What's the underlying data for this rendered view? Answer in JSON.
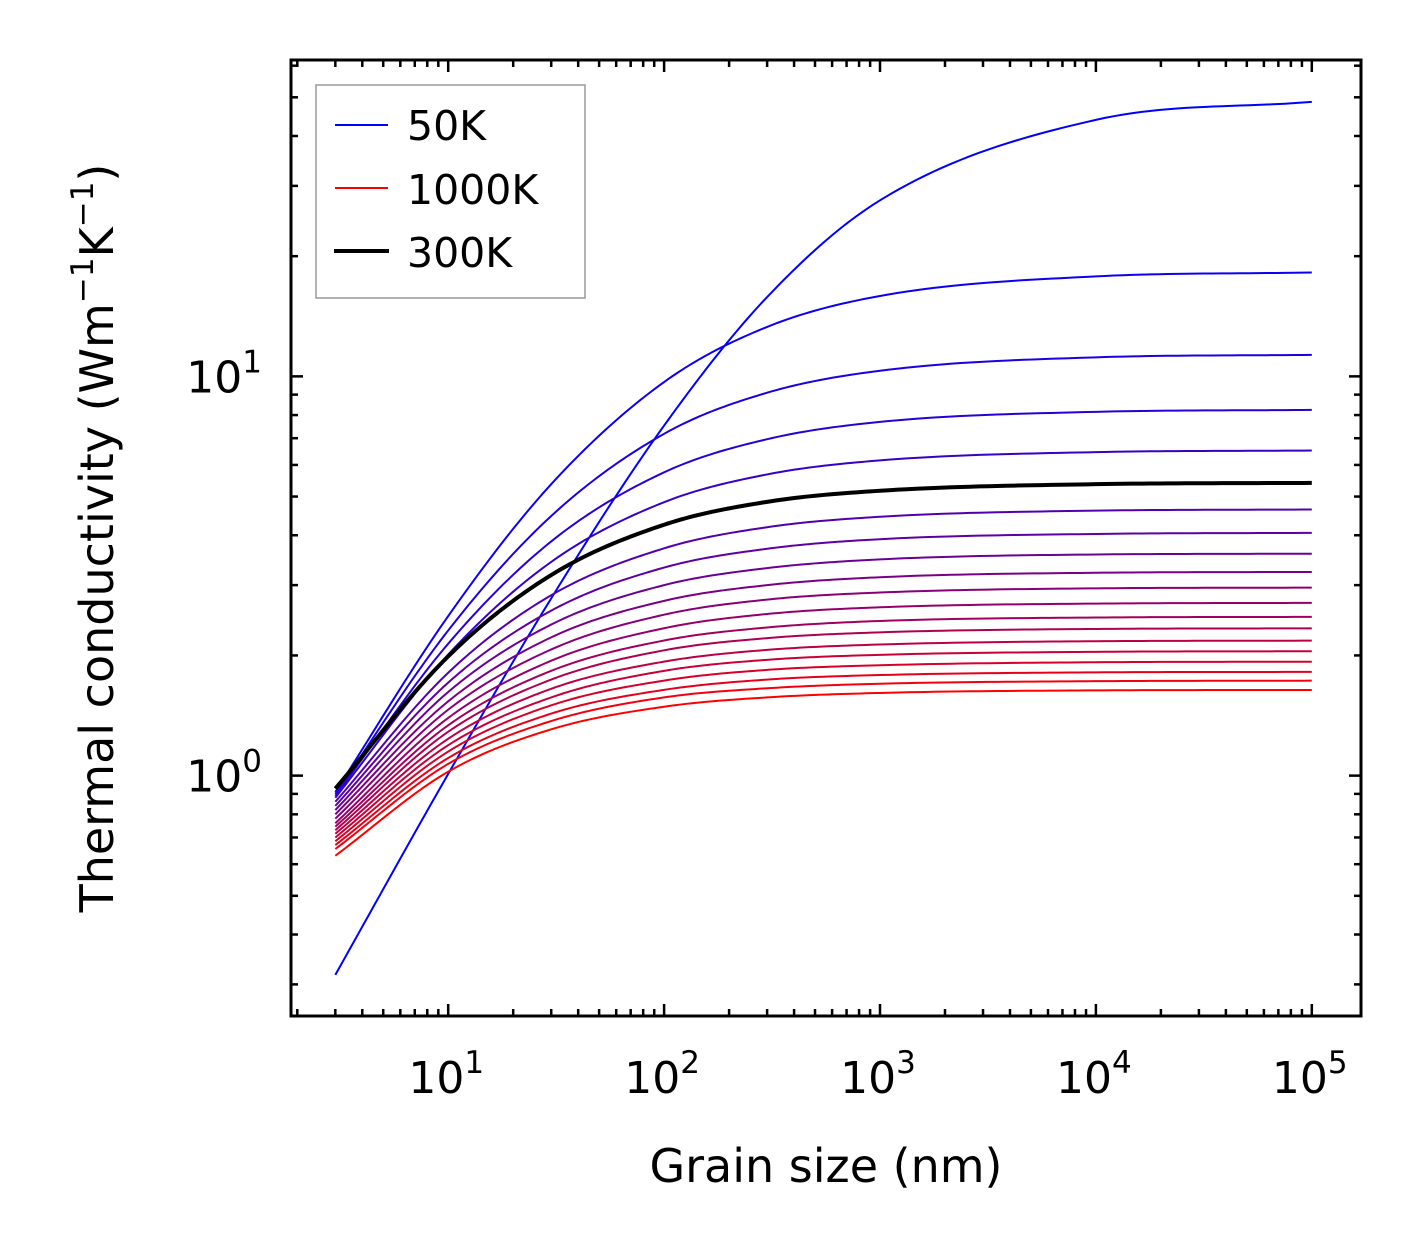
{
  "chart_data": {
    "type": "line",
    "title": "",
    "xlabel": "Grain size (nm)",
    "ylabel_parts": {
      "main": "Thermal conductivity (Wm",
      "sup1": "−1",
      "mid": "K",
      "sup2": "−1",
      "end": ")"
    },
    "ylabel": "Thermal conductivity (Wm⁻¹K⁻¹)",
    "xscale": "log",
    "yscale": "log",
    "xlim": [
      1.87,
      169000
    ],
    "ylim": [
      0.25,
      62
    ],
    "grid": false,
    "legend_position": "top-left",
    "x_major_ticks": [
      {
        "value": 10,
        "base": "10",
        "exp": "1"
      },
      {
        "value": 100,
        "base": "10",
        "exp": "2"
      },
      {
        "value": 1000,
        "base": "10",
        "exp": "3"
      },
      {
        "value": 10000,
        "base": "10",
        "exp": "4"
      },
      {
        "value": 100000,
        "base": "10",
        "exp": "5"
      }
    ],
    "y_major_ticks": [
      {
        "value": 1,
        "base": "10",
        "exp": "0"
      },
      {
        "value": 10,
        "base": "10",
        "exp": "1"
      }
    ],
    "legend": [
      {
        "label": "50K",
        "color": "#0000ff",
        "style": "thin"
      },
      {
        "label": "1000K",
        "color": "#ff0000",
        "style": "thin"
      },
      {
        "label": "300K",
        "color": "#000000",
        "style": "thick"
      }
    ],
    "color_start": "#0000ff",
    "color_end": "#ff0000",
    "highlight_color": "#000000",
    "x": [
      3,
      10,
      30,
      100,
      300,
      1000,
      10000,
      100000
    ],
    "series": [
      {
        "name": "50K",
        "temperature": 50,
        "values": [
          0.317,
          1.01,
          2.78,
          7.53,
          15.8,
          27.6,
          43.9,
          48.7
        ]
      },
      {
        "name": "100K",
        "temperature": 100,
        "values": [
          0.91,
          2.51,
          5.37,
          9.68,
          13.3,
          15.9,
          17.8,
          18.2
        ]
      },
      {
        "name": "150K",
        "temperature": 150,
        "values": [
          0.9,
          2.31,
          4.47,
          7.18,
          9.1,
          10.33,
          11.16,
          11.32
        ]
      },
      {
        "name": "200K",
        "temperature": 200,
        "values": [
          0.89,
          2.14,
          3.86,
          5.75,
          6.96,
          7.69,
          8.15,
          8.24
        ]
      },
      {
        "name": "250K",
        "temperature": 250,
        "values": [
          0.88,
          2.01,
          3.43,
          4.84,
          5.68,
          6.16,
          6.46,
          6.52
        ]
      },
      {
        "name": "300K",
        "temperature": 300,
        "values": [
          0.928,
          1.99,
          3.18,
          4.25,
          4.85,
          5.17,
          5.37,
          5.41
        ],
        "highlight": true
      },
      {
        "name": "350K",
        "temperature": 350,
        "values": [
          0.86,
          1.81,
          2.83,
          3.71,
          4.19,
          4.45,
          4.61,
          4.64
        ]
      },
      {
        "name": "400K",
        "temperature": 400,
        "values": [
          0.84,
          1.71,
          2.59,
          3.32,
          3.7,
          3.91,
          4.03,
          4.055
        ]
      },
      {
        "name": "450K",
        "temperature": 450,
        "values": [
          0.82,
          1.62,
          2.39,
          3.0,
          3.31,
          3.48,
          3.58,
          3.596
        ]
      },
      {
        "name": "500K",
        "temperature": 500,
        "values": [
          0.8,
          1.535,
          2.22,
          2.74,
          3.0,
          3.14,
          3.222,
          3.237
        ]
      },
      {
        "name": "550K",
        "temperature": 550,
        "values": [
          0.78,
          1.463,
          2.07,
          2.53,
          2.76,
          2.875,
          2.945,
          2.957
        ]
      },
      {
        "name": "600K",
        "temperature": 600,
        "values": [
          0.76,
          1.395,
          1.94,
          2.34,
          2.54,
          2.64,
          2.697,
          2.708
        ]
      },
      {
        "name": "650K",
        "temperature": 650,
        "values": [
          0.745,
          1.337,
          1.83,
          2.18,
          2.35,
          2.44,
          2.489,
          2.498
        ]
      },
      {
        "name": "700K",
        "temperature": 700,
        "values": [
          0.73,
          1.288,
          1.74,
          2.06,
          2.21,
          2.285,
          2.33,
          2.338
        ]
      },
      {
        "name": "750K",
        "temperature": 750,
        "values": [
          0.715,
          1.237,
          1.65,
          1.93,
          2.065,
          2.13,
          2.171,
          2.178
        ]
      },
      {
        "name": "800K",
        "temperature": 800,
        "values": [
          0.7,
          1.192,
          1.57,
          1.83,
          1.95,
          2.007,
          2.042,
          2.049
        ]
      },
      {
        "name": "850K",
        "temperature": 850,
        "values": [
          0.685,
          1.149,
          1.5,
          1.73,
          1.84,
          1.89,
          1.923,
          1.929
        ]
      },
      {
        "name": "900K",
        "temperature": 900,
        "values": [
          0.67,
          1.107,
          1.43,
          1.64,
          1.74,
          1.786,
          1.814,
          1.819
        ]
      },
      {
        "name": "950K",
        "temperature": 950,
        "values": [
          0.655,
          1.07,
          1.37,
          1.57,
          1.655,
          1.699,
          1.724,
          1.729
        ]
      },
      {
        "name": "1000K",
        "temperature": 1000,
        "values": [
          0.63,
          1.023,
          1.306,
          1.488,
          1.57,
          1.611,
          1.635,
          1.639
        ]
      }
    ]
  }
}
